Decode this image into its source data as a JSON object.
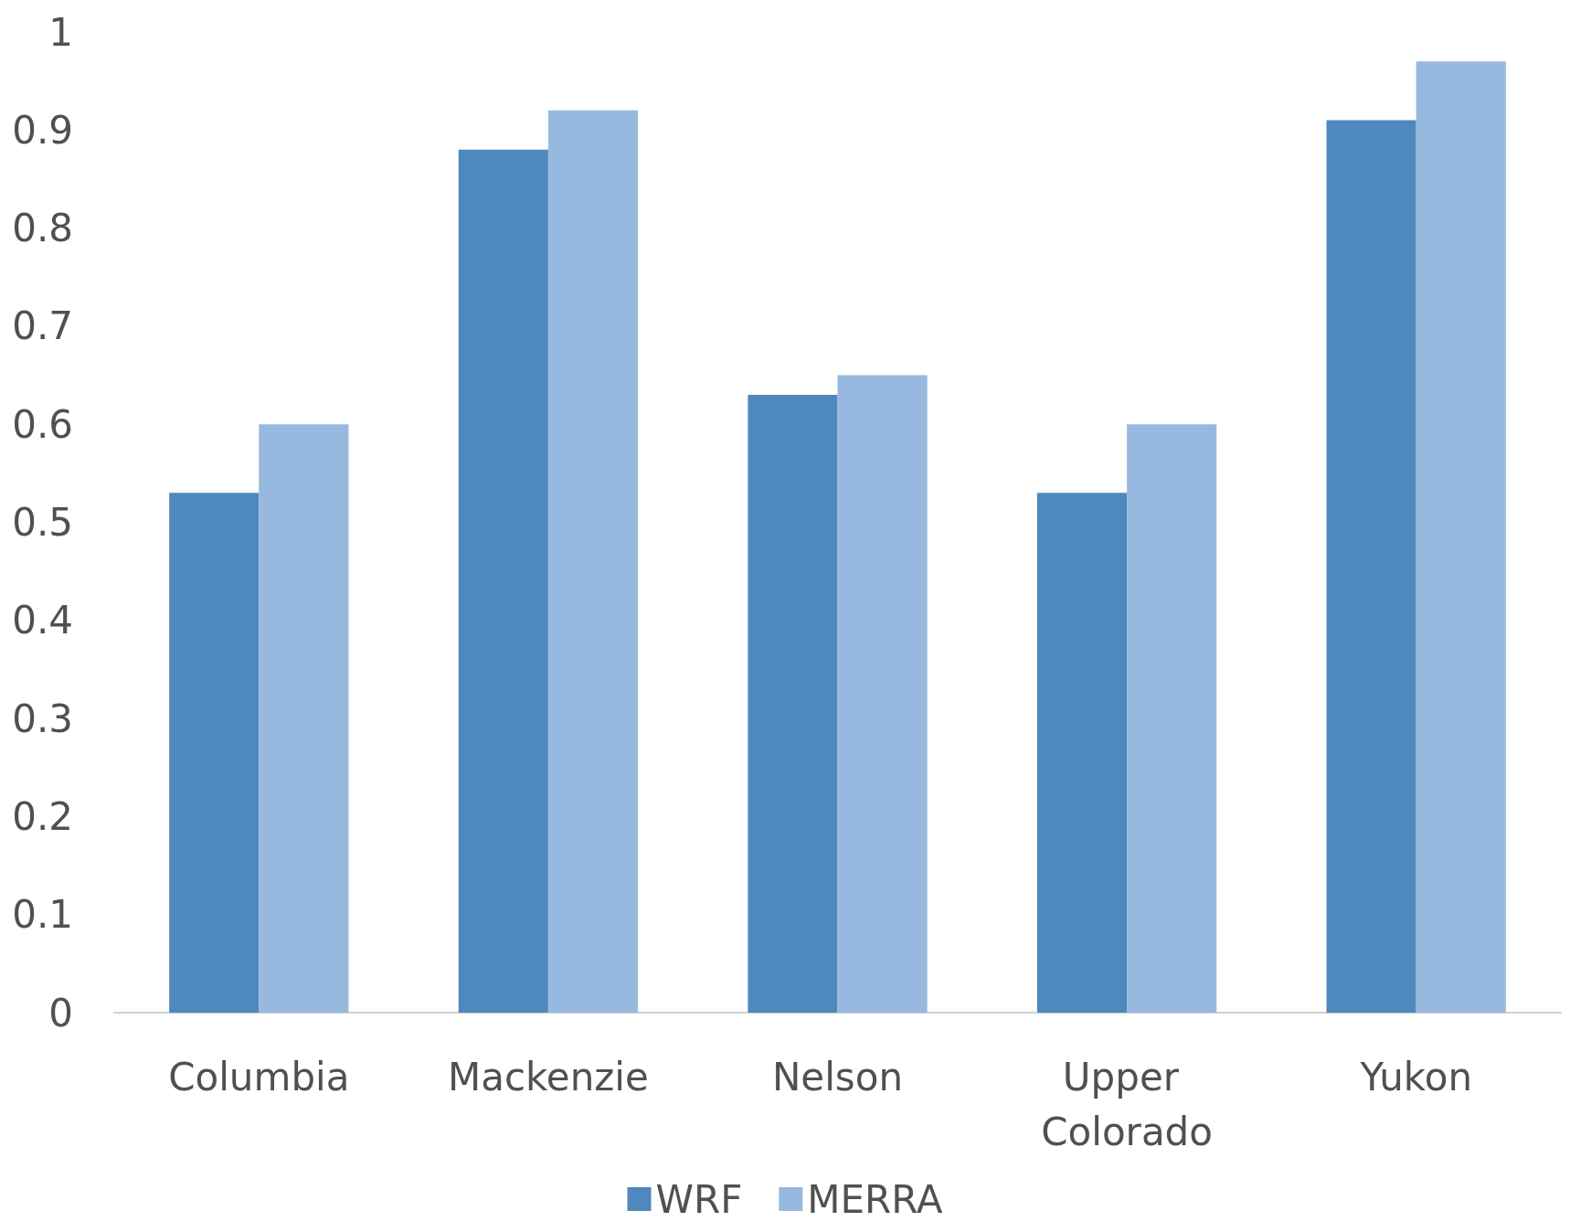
{
  "chart_data": {
    "type": "bar",
    "categories": [
      "Columbia",
      "Mackenzie",
      "Nelson",
      "Upper Colorado",
      "Yukon"
    ],
    "series": [
      {
        "name": "WRF",
        "color": "#4f88bc",
        "values": [
          0.53,
          0.88,
          0.63,
          0.53,
          0.91
        ]
      },
      {
        "name": "MERRA",
        "color": "#98b9df",
        "values": [
          0.6,
          0.92,
          0.65,
          0.6,
          0.97
        ]
      }
    ],
    "ylim": [
      0,
      1
    ],
    "yticks": [
      0,
      0.1,
      0.2,
      0.3,
      0.4,
      0.5,
      0.6,
      0.7,
      0.8,
      0.9,
      1
    ],
    "grid": false,
    "legend": "bottom"
  }
}
